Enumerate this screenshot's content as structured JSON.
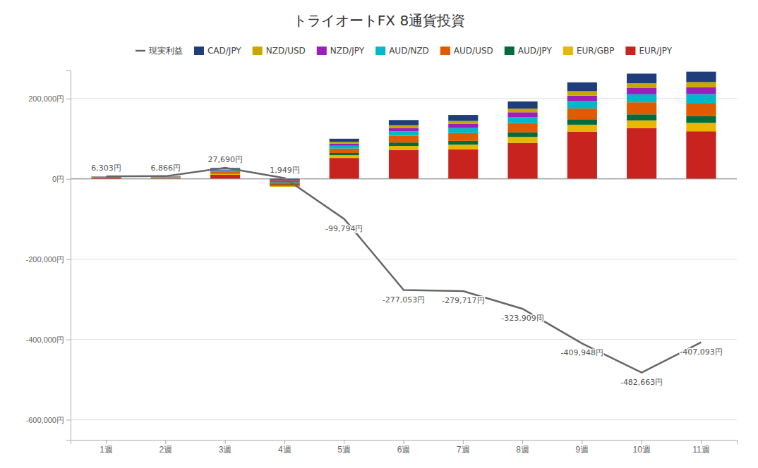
{
  "chart_data": {
    "type": "bar",
    "stacked": true,
    "title": "トライオートFX 8通貨投資",
    "categories": [
      "1週",
      "2週",
      "3週",
      "4週",
      "5週",
      "6週",
      "7週",
      "8週",
      "9週",
      "10週",
      "11週"
    ],
    "series": [
      {
        "name": "現実利益",
        "type": "line",
        "color": "#666666",
        "values": [
          6303,
          6866,
          27690,
          1949,
          -99794,
          -277053,
          -279717,
          -323909,
          -409948,
          -482663,
          -407093
        ],
        "value_labels": [
          "6,303円",
          "6,866円",
          "27,690円",
          "1,949円",
          "-99,794円",
          "-277,053円",
          "-279,717円",
          "-323,909円",
          "-409,948円",
          "-482,663円",
          "-407,093円"
        ],
        "data_labels": true
      },
      {
        "name": "CAD/JPY",
        "type": "bar",
        "color": "#1f3d7a",
        "values": [
          300,
          600,
          2500,
          3000,
          8000,
          13000,
          15000,
          18000,
          22000,
          24000,
          26000
        ]
      },
      {
        "name": "NZD/USD",
        "type": "bar",
        "color": "#c8a800",
        "values": [
          200,
          400,
          1500,
          1800,
          4000,
          6500,
          7500,
          9000,
          11000,
          12000,
          13000
        ]
      },
      {
        "name": "NZD/JPY",
        "type": "bar",
        "color": "#9b1fbb",
        "values": [
          300,
          600,
          2000,
          2400,
          5500,
          8500,
          10000,
          12000,
          14000,
          15500,
          17000
        ]
      },
      {
        "name": "AUD/NZD",
        "type": "bar",
        "color": "#00b8c8",
        "values": [
          400,
          800,
          2500,
          3000,
          7000,
          11000,
          12500,
          15000,
          18000,
          20000,
          22000
        ]
      },
      {
        "name": "AUD/USD",
        "type": "bar",
        "color": "#e05a00",
        "values": [
          600,
          1200,
          4000,
          4800,
          11000,
          17000,
          19500,
          23000,
          27000,
          30000,
          33000
        ]
      },
      {
        "name": "AUD/JPY",
        "type": "bar",
        "color": "#006b3c",
        "values": [
          300,
          600,
          2000,
          2400,
          5500,
          8500,
          9500,
          11500,
          13500,
          15000,
          16500
        ]
      },
      {
        "name": "EUR/GBP",
        "type": "bar",
        "color": "#e8b800",
        "values": [
          400,
          800,
          2500,
          3000,
          7000,
          10500,
          12000,
          14500,
          17000,
          19000,
          21000
        ]
      },
      {
        "name": "EUR/JPY",
        "type": "bar",
        "color": "#c8231e",
        "values": [
          3803,
          1858,
          10190,
          -19452,
          52044,
          71553,
          73217,
          89909,
          117948,
          126663,
          118593
        ]
      }
    ],
    "ylim": [
      -650000,
      270000
    ],
    "yticks": [
      {
        "value": -600000,
        "label": "-600,000円"
      },
      {
        "value": -400000,
        "label": "-400,000円"
      },
      {
        "value": -200000,
        "label": "-200,000円"
      },
      {
        "value": 0,
        "label": "0円"
      },
      {
        "value": 200000,
        "label": "200,000円"
      }
    ],
    "grid": true,
    "legend": "top"
  }
}
